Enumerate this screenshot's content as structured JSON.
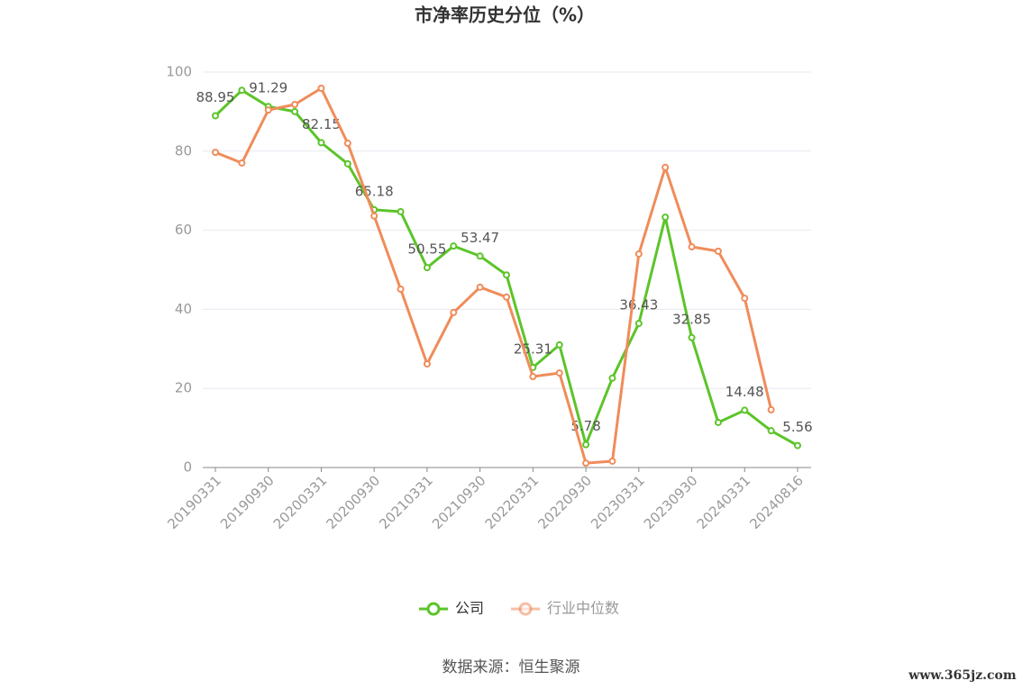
{
  "chart_data": {
    "type": "line",
    "title": "市净率历史分位（%）",
    "categories": [
      "20190331",
      null,
      "20190930",
      null,
      "20200331",
      null,
      "20200930",
      null,
      "20210331",
      null,
      "20210930",
      null,
      "20220331",
      null,
      "20220930",
      null,
      "20230331",
      null,
      "20230930",
      null,
      "20240331",
      null,
      "20240816"
    ],
    "ylim": [
      0,
      100
    ],
    "yticks": [
      0,
      20,
      40,
      60,
      80,
      100
    ],
    "grid": true,
    "legend": "bottom",
    "series": [
      {
        "name": "公司",
        "color": "#5cc42a",
        "values": [
          88.95,
          95.4,
          91.29,
          90.0,
          82.15,
          76.8,
          65.18,
          64.7,
          50.55,
          56.0,
          53.47,
          48.7,
          25.31,
          31.0,
          5.78,
          22.6,
          36.43,
          63.3,
          32.85,
          11.4,
          14.48,
          9.3,
          5.56
        ],
        "value_labels": [
          "88.95",
          null,
          "91.29",
          null,
          "82.15",
          null,
          "65.18",
          null,
          "50.55",
          null,
          "53.47",
          null,
          "25.31",
          null,
          "5.78",
          null,
          "36.43",
          null,
          "32.85",
          null,
          "14.48",
          null,
          "5.56"
        ]
      },
      {
        "name": "行业中位数",
        "color": "#f08c5a",
        "values": [
          79.7,
          77.0,
          90.4,
          91.8,
          95.9,
          82.0,
          63.6,
          45.1,
          26.2,
          39.2,
          45.6,
          43.1,
          23.0,
          23.9,
          1.1,
          1.6,
          54.0,
          75.9,
          55.8,
          54.7,
          42.8,
          14.6,
          null
        ]
      }
    ],
    "source": "数据来源：恒生聚源",
    "watermark": "www.365jz.com"
  }
}
